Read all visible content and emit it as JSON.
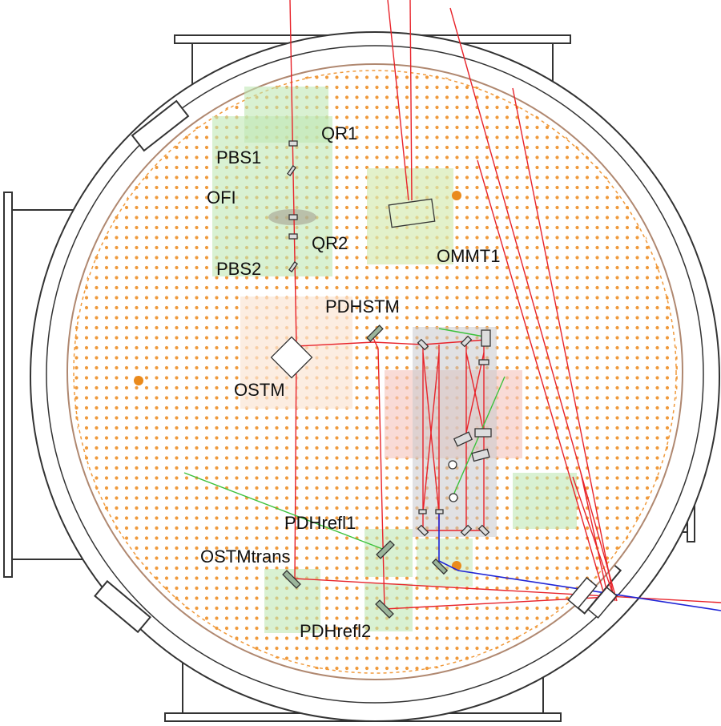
{
  "labels": {
    "qr1": "QR1",
    "pbs1": "PBS1",
    "ofi": "OFI",
    "qr2": "QR2",
    "pbs2": "PBS2",
    "ommt1": "OMMT1",
    "pdhstm": "PDHSTM",
    "ostm": "OSTM",
    "pdhrefl1": "PDHrefl1",
    "ostmtrans": "OSTMtrans",
    "pdhrefl2": "PDHrefl2"
  },
  "colors": {
    "laser_beam": "#e8232a",
    "green_beam": "#3cc23c",
    "blue_beam": "#1f24d6",
    "table_dots": "#f09a3c",
    "vessel_outline": "#333333",
    "table_edge": "#b08870",
    "green_zone": "#bfe8b4",
    "red_zone": "#f6c8c0",
    "grey_zone": "#c8c8cc"
  }
}
